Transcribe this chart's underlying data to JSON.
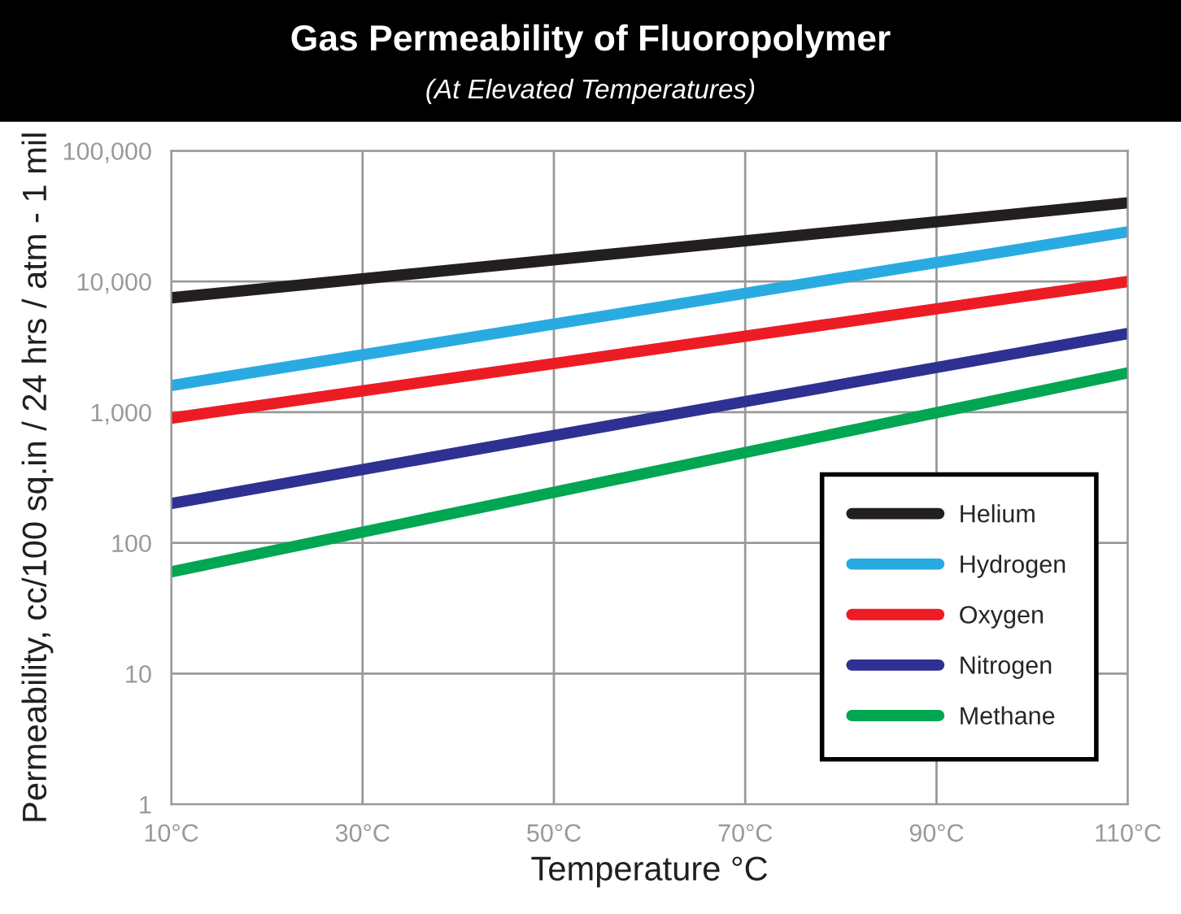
{
  "chart_data": {
    "type": "line",
    "title": "Gas Permeability of Fluoropolymer",
    "subtitle": "(At Elevated Temperatures)",
    "xlabel": "Temperature °C",
    "ylabel": "Permeability, cc/100 sq.in / 24 hrs / atm - 1 mil",
    "x": [
      10,
      110
    ],
    "series": [
      {
        "name": "Helium",
        "color": "#231f20",
        "values": [
          7500,
          40000
        ]
      },
      {
        "name": "Hydrogen",
        "color": "#29abe2",
        "values": [
          1600,
          24000
        ]
      },
      {
        "name": "Oxygen",
        "color": "#ed1c24",
        "values": [
          900,
          10000
        ]
      },
      {
        "name": "Nitrogen",
        "color": "#2e3192",
        "values": [
          200,
          4000
        ]
      },
      {
        "name": "Methane",
        "color": "#00a651",
        "values": [
          60,
          2000
        ]
      }
    ],
    "log": "y",
    "xlim": [
      10,
      110
    ],
    "ylim": [
      1,
      100000
    ],
    "xticks": [
      {
        "value": 10,
        "label": "10°C"
      },
      {
        "value": 30,
        "label": "30°C"
      },
      {
        "value": 50,
        "label": "50°C"
      },
      {
        "value": 70,
        "label": "70°C"
      },
      {
        "value": 90,
        "label": "90°C"
      },
      {
        "value": 110,
        "label": "110°C"
      }
    ],
    "yticks": [
      1,
      10,
      100,
      {
        "value": 1000,
        "label": "1,000"
      },
      {
        "value": 10000,
        "label": "10,000"
      },
      {
        "value": 100000,
        "label": "100,000"
      }
    ],
    "grid": true,
    "legend": "bottom right",
    "line_style": "solid",
    "marker": "none"
  }
}
